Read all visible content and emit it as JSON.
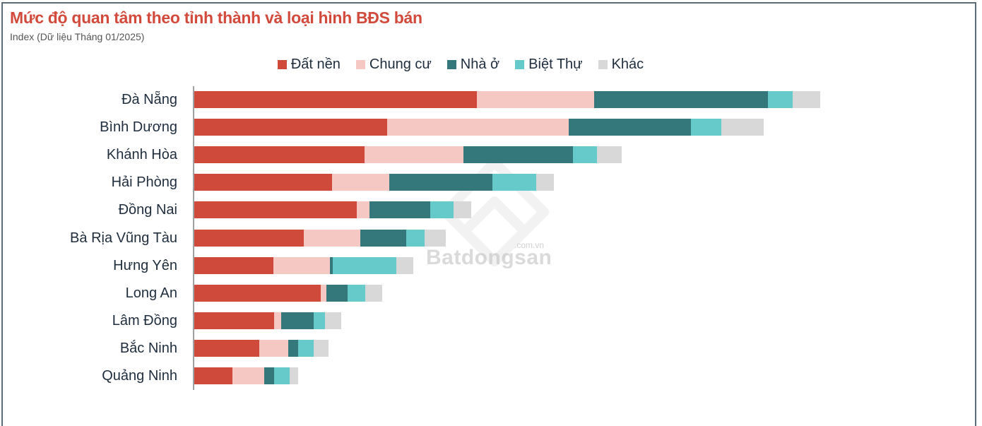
{
  "header": {
    "title": "Mức độ quan tâm theo tỉnh thành và loại hình BĐS bán",
    "subtitle": "Index (Dữ liệu Tháng 01/2025)"
  },
  "legend": [
    {
      "label": "Đất nền",
      "color": "#d04a3c"
    },
    {
      "label": "Chung cư",
      "color": "#f5c8c3"
    },
    {
      "label": "Nhà ở",
      "color": "#35787c"
    },
    {
      "label": "Biệt Thự",
      "color": "#66c9ca"
    },
    {
      "label": "Khác",
      "color": "#d8d8d8"
    }
  ],
  "watermark": {
    "brand": "Batdongsan",
    "domain": ".com.vn"
  },
  "chart_data": {
    "type": "bar",
    "orientation": "horizontal",
    "stacked": true,
    "title": "Mức độ quan tâm theo tỉnh thành và loại hình BĐS bán",
    "subtitle": "Index (Dữ liệu Tháng 01/2025)",
    "xlabel": "",
    "ylabel": "",
    "xlim": [
      0,
      100
    ],
    "grid": false,
    "legend_position": "top",
    "note": "No axis ticks shown; values are relative index estimates scaled so the largest total (Đà Nẵng) = 100.",
    "categories": [
      "Đà Nẵng",
      "Bình Dương",
      "Khánh Hòa",
      "Hải Phòng",
      "Đồng Nai",
      "Bà Rịa Vũng Tàu",
      "Hưng Yên",
      "Long An",
      "Lâm Đồng",
      "Bắc Ninh",
      "Quảng Ninh"
    ],
    "series": [
      {
        "name": "Đất nền",
        "color": "#d04a3c",
        "values": [
          45.1,
          30.8,
          27.2,
          22.0,
          25.9,
          17.5,
          12.6,
          20.2,
          12.7,
          10.4,
          6.1
        ]
      },
      {
        "name": "Chung cư",
        "color": "#f5c8c3",
        "values": [
          18.7,
          28.9,
          15.7,
          9.1,
          2.1,
          9.0,
          9.0,
          0.9,
          1.2,
          4.6,
          5.1
        ]
      },
      {
        "name": "Nhà ở",
        "color": "#35787c",
        "values": [
          27.8,
          19.6,
          17.5,
          16.5,
          9.7,
          7.3,
          0.5,
          3.4,
          5.1,
          1.6,
          1.5
        ]
      },
      {
        "name": "Biệt Thự",
        "color": "#66c9ca",
        "values": [
          3.9,
          4.8,
          3.9,
          7.0,
          3.7,
          3.0,
          10.1,
          2.8,
          1.9,
          2.5,
          2.5
        ]
      },
      {
        "name": "Khác",
        "color": "#d8d8d8",
        "values": [
          4.4,
          6.8,
          3.9,
          2.8,
          2.8,
          3.3,
          2.7,
          2.7,
          2.6,
          2.3,
          1.4
        ]
      }
    ]
  }
}
